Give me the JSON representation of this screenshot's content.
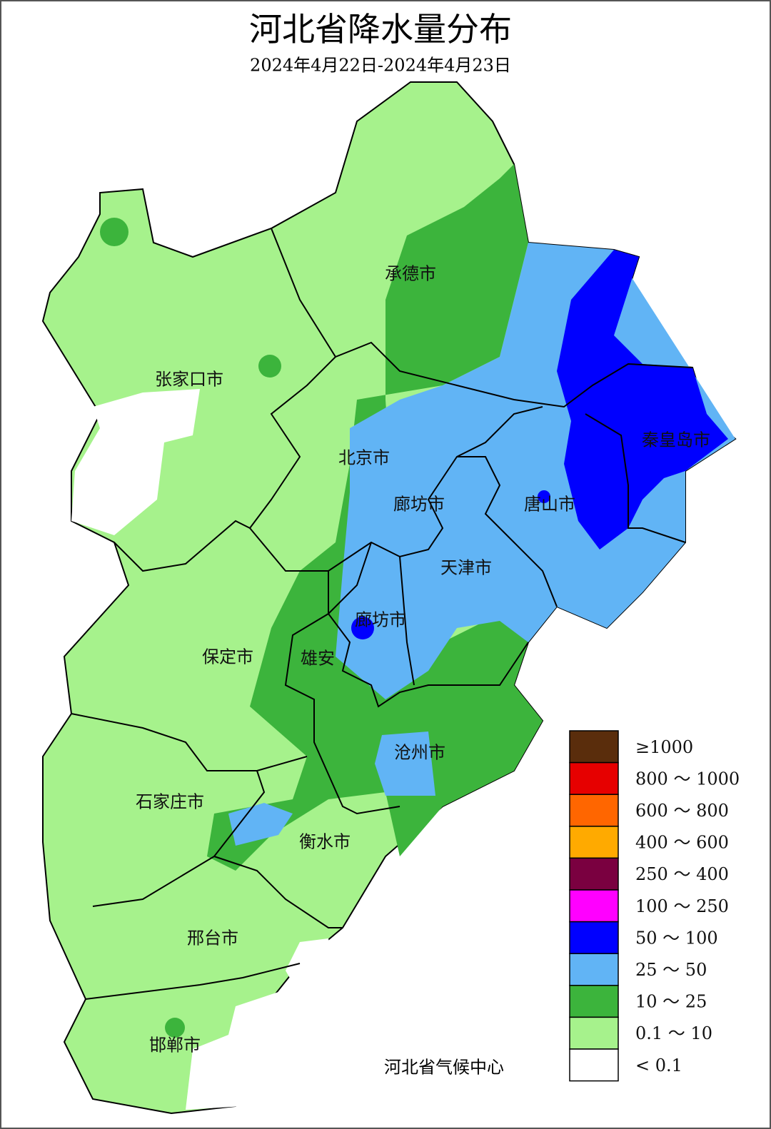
{
  "title": "河北省降水量分布",
  "subtitle": "2024年4月22日-2024年4月23日",
  "labels": [
    "承德市",
    "张家口市",
    "北京市",
    "廊坊市",
    "唐山市",
    "秦皇岛市",
    "天津市",
    "廊坊市",
    "雄安",
    "保定市",
    "沧州市",
    "石家庄市",
    "衡水市",
    "邢台市",
    "邯郸市"
  ],
  "legend": [
    {
      "label": "≥1000",
      "color": "#5a2d0c"
    },
    {
      "label": "800 ～ 1000",
      "color": "#e60000"
    },
    {
      "label": "600 ～ 800",
      "color": "#ff6600"
    },
    {
      "label": "400 ～ 600",
      "color": "#ffaa00"
    },
    {
      "label": "250 ～ 400",
      "color": "#7a0040"
    },
    {
      "label": "100 ～ 250",
      "color": "#ff00ff"
    },
    {
      "label": "50 ～ 100",
      "color": "#0000ff"
    },
    {
      "label": "25 ～ 50",
      "color": "#61b4f5"
    },
    {
      "label": "10 ～ 25",
      "color": "#3cb43c"
    },
    {
      "label": "0.1 ～ 10",
      "color": "#a6f28c"
    },
    {
      "label": "< 0.1",
      "color": "#ffffff"
    }
  ],
  "credit": "河北省气候中心"
}
